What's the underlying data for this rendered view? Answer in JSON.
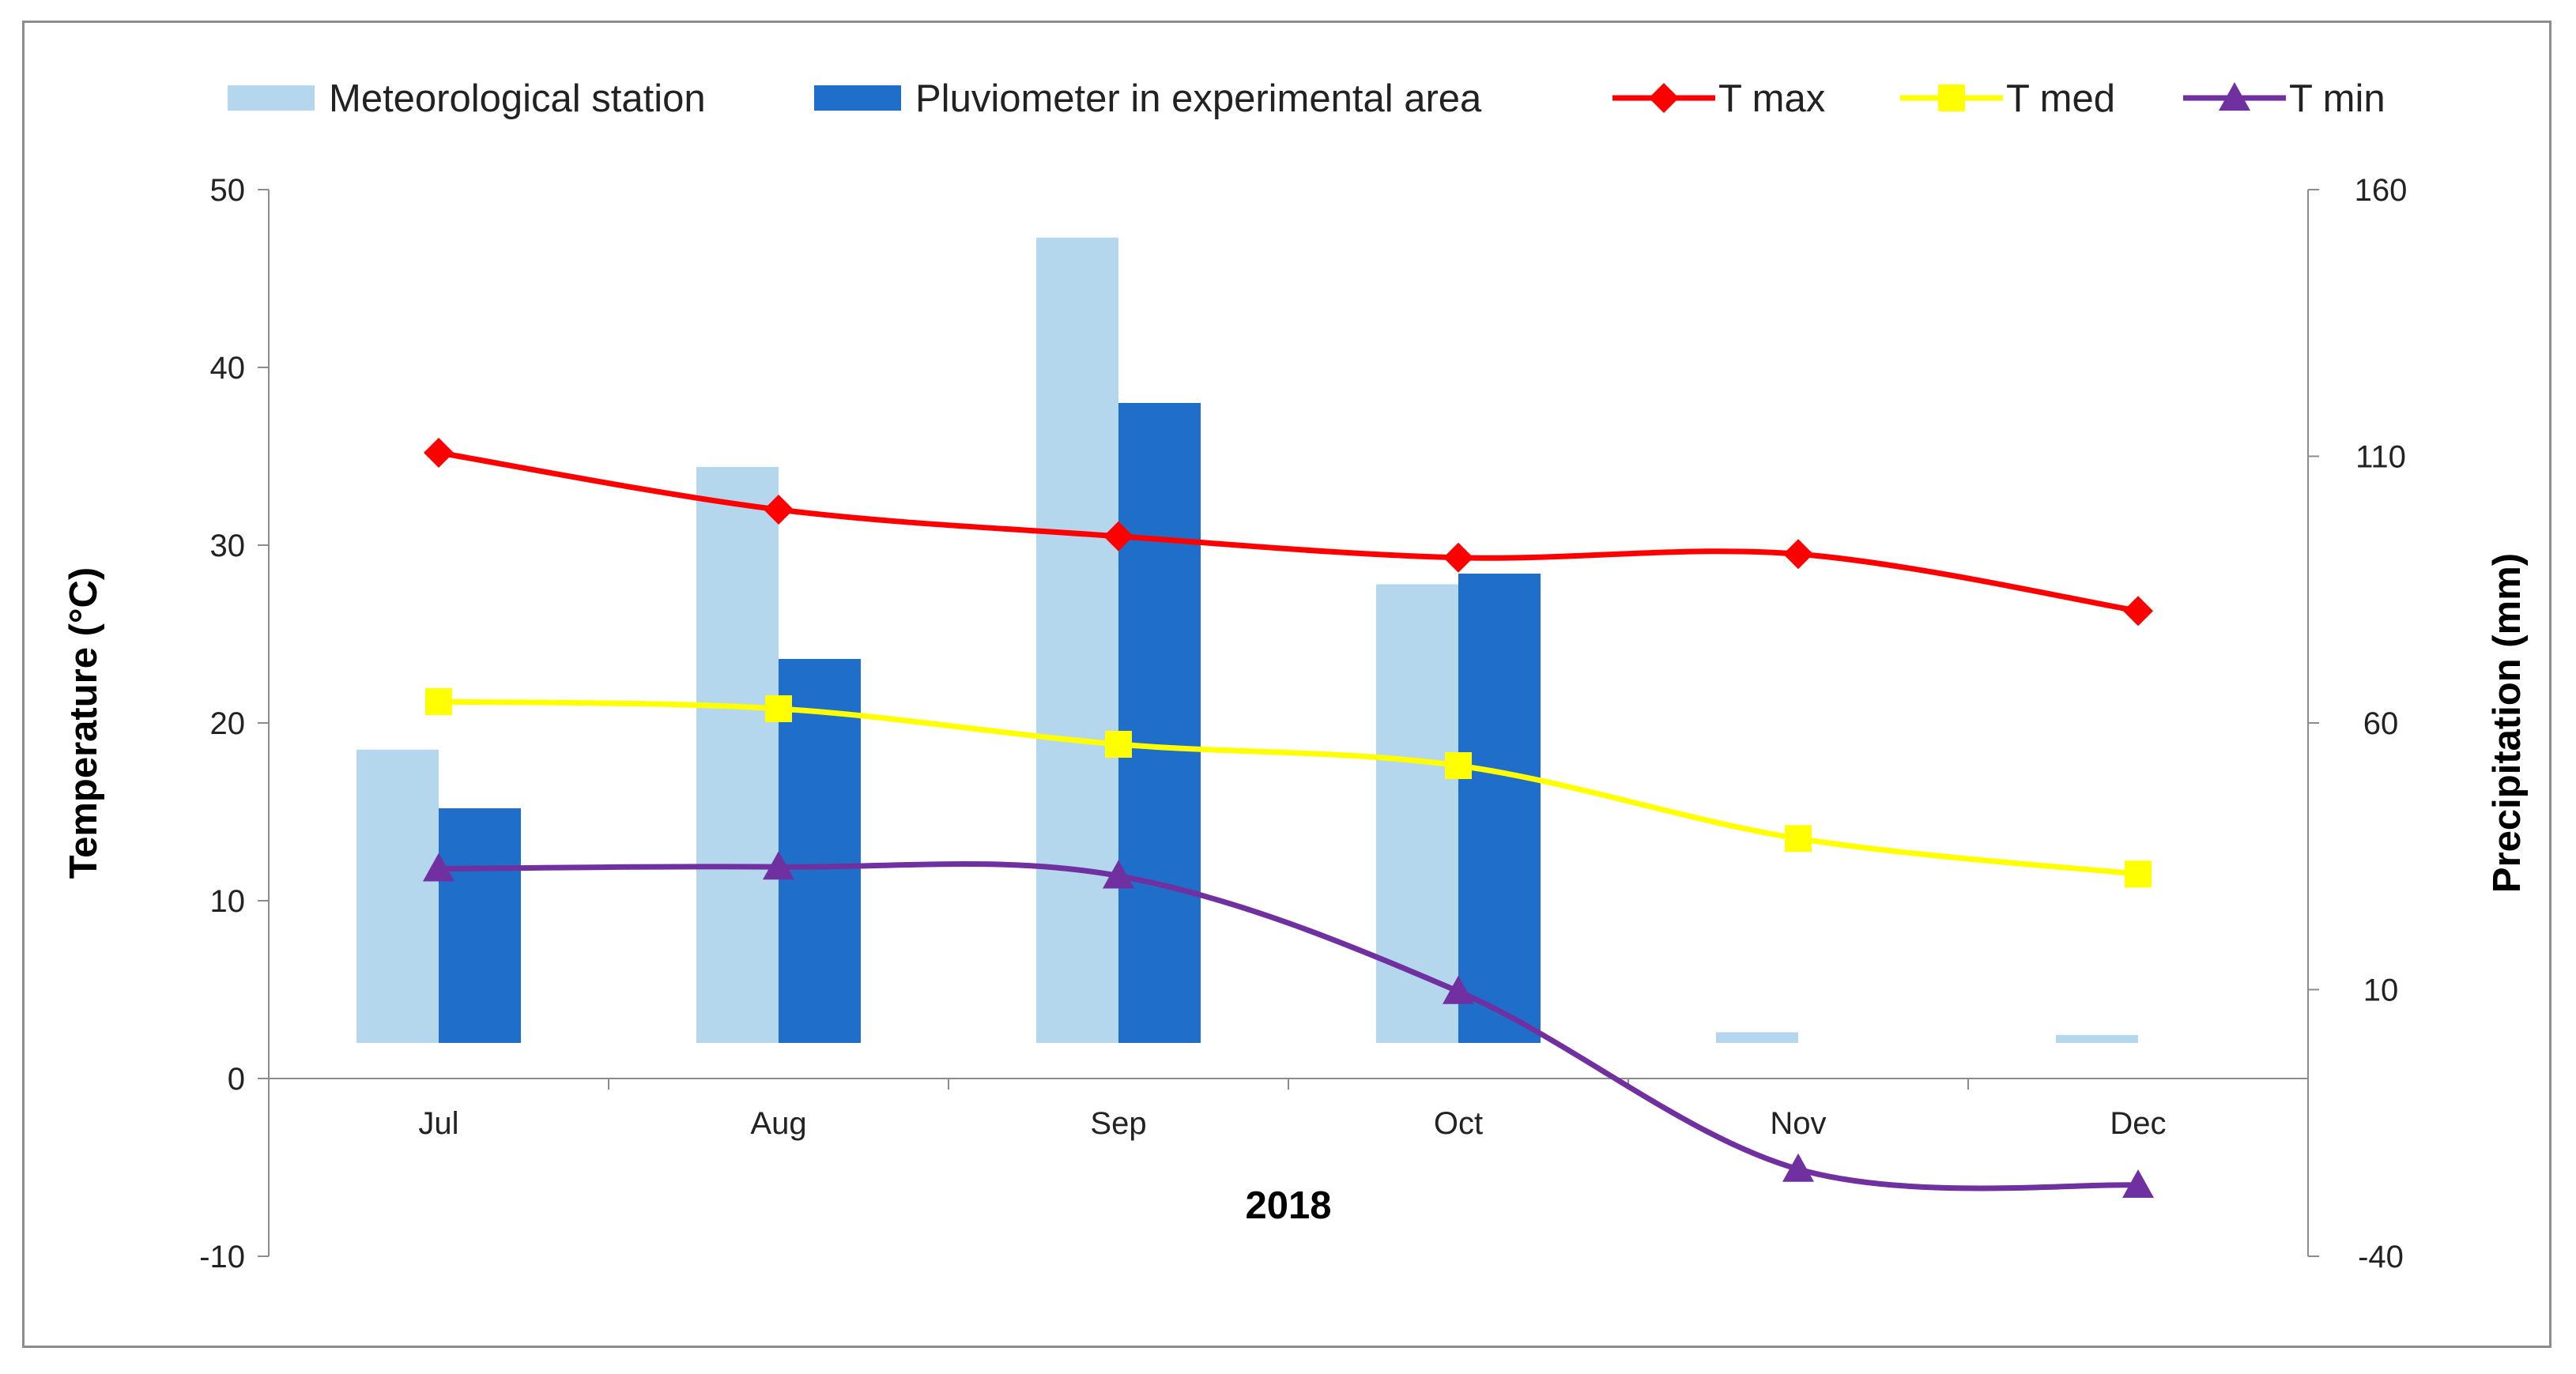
{
  "chart_data": {
    "type": "bar+line",
    "title": "",
    "xlabel": "2018",
    "ylabel": "Temperature (°C)",
    "y2label": "Precipitation (mm)",
    "categories": [
      "Jul",
      "Aug",
      "Sep",
      "Oct",
      "Nov",
      "Dec"
    ],
    "ylim": [
      -10,
      50
    ],
    "y_ticks": [
      "-10",
      "0",
      "10",
      "20",
      "30",
      "40",
      "50"
    ],
    "y2lim": [
      -40,
      160
    ],
    "y2_ticks": [
      "-40",
      "10",
      "60",
      "110",
      "160"
    ],
    "bar_series": [
      {
        "name": "Meteorological station",
        "color": "#b4d7ee",
        "axis": "right",
        "values": [
          55,
          108,
          151,
          86,
          2,
          1.5
        ]
      },
      {
        "name": "Pluviometer in experimental area",
        "color": "#1f6fca",
        "axis": "right",
        "values": [
          44,
          72,
          120,
          88,
          0,
          0
        ]
      }
    ],
    "line_series": [
      {
        "name": "T max",
        "color": "#ff0000",
        "marker": "diamond",
        "axis": "left",
        "values": [
          35.2,
          32.0,
          30.5,
          29.3,
          29.5,
          26.3
        ]
      },
      {
        "name": "T med",
        "color": "#ffff00",
        "marker": "square",
        "axis": "left",
        "values": [
          21.2,
          20.8,
          18.8,
          17.6,
          13.5,
          11.5
        ]
      },
      {
        "name": "T min",
        "color": "#7030a0",
        "marker": "triangle",
        "axis": "left",
        "values": [
          11.8,
          11.9,
          11.4,
          4.9,
          -5.1,
          -6.0
        ]
      }
    ],
    "legend_position": "top"
  }
}
